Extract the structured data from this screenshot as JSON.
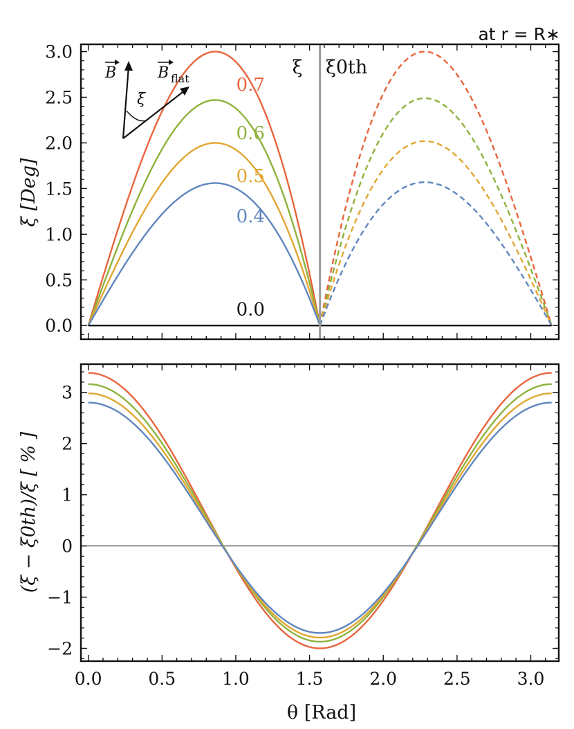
{
  "chart_data": [
    {
      "type": "line",
      "title": "",
      "annotation": "at r = R∗",
      "xlabel": "",
      "ylabel": "ξ [Deg]",
      "xlim": [
        -0.05,
        3.19
      ],
      "ylim": [
        -0.15,
        3.08
      ],
      "grid": false,
      "xticks": [
        0.0,
        0.5,
        1.0,
        1.5,
        2.0,
        2.5,
        3.0
      ],
      "yticks": [
        0.0,
        0.5,
        1.0,
        1.5,
        2.0,
        2.5,
        3.0
      ],
      "ytick_labels": [
        "0.0",
        "0.5",
        "1.0",
        "1.5",
        "2.0",
        "2.5",
        "3.0"
      ],
      "divider_x": 1.5708,
      "left_region_label": "ξ",
      "right_region_label": "ξ0th",
      "inset": {
        "vector_1": "B",
        "vector_2": "B",
        "vector_2_subscript": "flat",
        "angle_label": "ξ"
      },
      "x_domain": [
        0,
        3.1416
      ],
      "series": [
        {
          "name": "0.7",
          "color": "#E8653D",
          "peak_left": 3.0,
          "peak_right": 3.0,
          "label_value": "0.7"
        },
        {
          "name": "0.6",
          "color": "#8EB23C",
          "peak_left": 2.47,
          "peak_right": 2.49,
          "label_value": "0.6"
        },
        {
          "name": "0.5",
          "color": "#E2A632",
          "peak_left": 2.0,
          "peak_right": 2.02,
          "label_value": "0.5"
        },
        {
          "name": "0.4",
          "color": "#5F86BF",
          "peak_left": 1.56,
          "peak_right": 1.57,
          "label_value": "0.4"
        },
        {
          "name": "0.0",
          "color": "#111111",
          "peak_left": 0.0,
          "peak_right": 0.0,
          "label_value": "0.0"
        }
      ],
      "styles": {
        "left": "solid",
        "right": "dashed"
      }
    },
    {
      "type": "line",
      "title": "",
      "xlabel": "θ [Rad]",
      "ylabel": "(ξ − ξ0th)/ξ [ % ]",
      "xlim": [
        -0.05,
        3.19
      ],
      "ylim": [
        -2.25,
        3.55
      ],
      "grid": false,
      "xticks": [
        0.0,
        0.5,
        1.0,
        1.5,
        2.0,
        2.5,
        3.0
      ],
      "xtick_labels": [
        "0.0",
        "0.5",
        "1.0",
        "1.5",
        "2.0",
        "2.5",
        "3.0"
      ],
      "yticks": [
        -2,
        -1,
        0,
        1,
        2,
        3
      ],
      "ytick_labels": [
        "−2",
        "−1",
        "0",
        "1",
        "2",
        "3"
      ],
      "x_domain": [
        0,
        3.1416
      ],
      "series": [
        {
          "name": "0.7",
          "color": "#E8653D",
          "value_at_0": 3.38,
          "min_at_pi_over_2": -2.0
        },
        {
          "name": "0.6",
          "color": "#8EB23C",
          "value_at_0": 3.16,
          "min_at_pi_over_2": -1.87
        },
        {
          "name": "0.5",
          "color": "#E2A632",
          "value_at_0": 2.98,
          "min_at_pi_over_2": -1.79
        },
        {
          "name": "0.4",
          "color": "#5F86BF",
          "value_at_0": 2.8,
          "min_at_pi_over_2": -1.7
        }
      ]
    }
  ]
}
